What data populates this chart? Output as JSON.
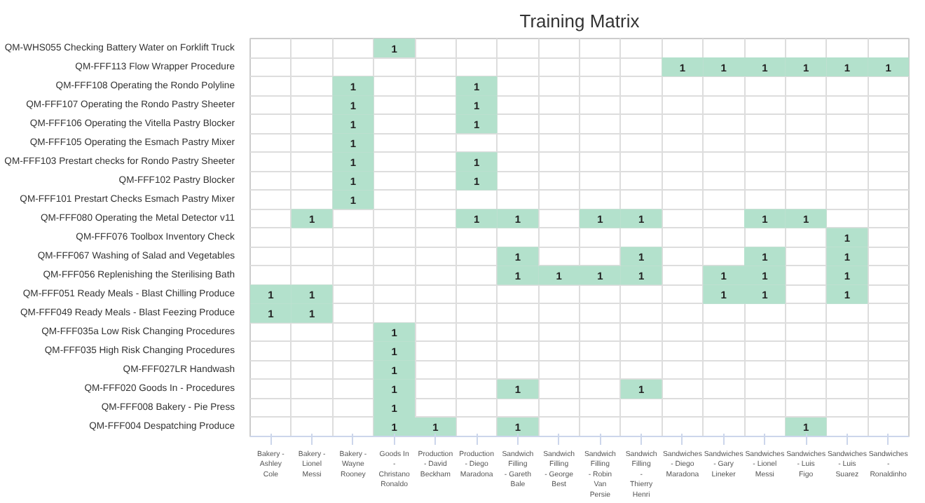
{
  "chart_data": {
    "type": "heatmap",
    "title": "Training Matrix",
    "categories": [
      "Bakery - Ashley Cole",
      "Bakery - Lionel Messi",
      "Bakery - Wayne Rooney",
      "Goods In - Christano Ronaldo",
      "Production - David Beckham",
      "Production - Diego Maradona",
      "Sandwich Filling - Gareth Bale",
      "Sandwich Filling - George Best",
      "Sandwich Filling - Robin Van Persie",
      "Sandwich Filling - Thierry Henri",
      "Sandwiches - Diego Maradona",
      "Sandwiches - Gary Lineker",
      "Sandwiches - Lionel Messi",
      "Sandwiches - Luis Figo",
      "Sandwiches - Luis Suarez",
      "Sandwiches - Ronaldinho"
    ],
    "y_categories": [
      "QM-WHS055 Checking Battery Water on Forklift Truck",
      "QM-FFF113 Flow Wrapper Procedure",
      "QM-FFF108 Operating the Rondo Polyline",
      "QM-FFF107 Operating the Rondo Pastry Sheeter",
      "QM-FFF106 Operating the Vitella Pastry Blocker",
      "QM-FFF105 Operating the Esmach Pastry Mixer",
      "QM-FFF103 Prestart checks for Rondo Pastry Sheeter",
      "QM-FFF102 Pastry Blocker",
      "QM-FFF101 Prestart Checks Esmach Pastry Mixer",
      "QM-FFF080 Operating the Metal Detector v11",
      "QM-FFF076 Toolbox Inventory Check",
      "QM-FFF067 Washing of Salad and Vegetables",
      "QM-FFF056 Replenishing the Sterilising Bath",
      "QM-FFF051 Ready Meals - Blast Chilling Produce",
      "QM-FFF049 Ready Meals - Blast Feezing Produce",
      "QM-FFF035a Low Risk Changing Procedures",
      "QM-FFF035 High Risk Changing Procedures",
      "QM-FFF027LR Handwash",
      "QM-FFF020 Goods In - Procedures",
      "QM-FFF008 Bakery - Pie Press",
      "QM-FFF004 Despatching Produce"
    ],
    "cells": [
      [
        null,
        null,
        null,
        1,
        null,
        null,
        null,
        null,
        null,
        null,
        null,
        null,
        null,
        null,
        null,
        null
      ],
      [
        null,
        null,
        null,
        null,
        null,
        null,
        null,
        null,
        null,
        null,
        1,
        1,
        1,
        1,
        1,
        1
      ],
      [
        null,
        null,
        1,
        null,
        null,
        1,
        null,
        null,
        null,
        null,
        null,
        null,
        null,
        null,
        null,
        null
      ],
      [
        null,
        null,
        1,
        null,
        null,
        1,
        null,
        null,
        null,
        null,
        null,
        null,
        null,
        null,
        null,
        null
      ],
      [
        null,
        null,
        1,
        null,
        null,
        1,
        null,
        null,
        null,
        null,
        null,
        null,
        null,
        null,
        null,
        null
      ],
      [
        null,
        null,
        1,
        null,
        null,
        null,
        null,
        null,
        null,
        null,
        null,
        null,
        null,
        null,
        null,
        null
      ],
      [
        null,
        null,
        1,
        null,
        null,
        1,
        null,
        null,
        null,
        null,
        null,
        null,
        null,
        null,
        null,
        null
      ],
      [
        null,
        null,
        1,
        null,
        null,
        1,
        null,
        null,
        null,
        null,
        null,
        null,
        null,
        null,
        null,
        null
      ],
      [
        null,
        null,
        1,
        null,
        null,
        null,
        null,
        null,
        null,
        null,
        null,
        null,
        null,
        null,
        null,
        null
      ],
      [
        null,
        1,
        null,
        null,
        null,
        1,
        1,
        null,
        1,
        1,
        null,
        null,
        1,
        1,
        null,
        null
      ],
      [
        null,
        null,
        null,
        null,
        null,
        null,
        null,
        null,
        null,
        null,
        null,
        null,
        null,
        null,
        1,
        null
      ],
      [
        null,
        null,
        null,
        null,
        null,
        null,
        1,
        null,
        null,
        1,
        null,
        null,
        1,
        null,
        1,
        null
      ],
      [
        null,
        null,
        null,
        null,
        null,
        null,
        1,
        1,
        1,
        1,
        null,
        1,
        1,
        null,
        1,
        null
      ],
      [
        1,
        1,
        null,
        null,
        null,
        null,
        null,
        null,
        null,
        null,
        null,
        1,
        1,
        null,
        1,
        null
      ],
      [
        1,
        1,
        null,
        null,
        null,
        null,
        null,
        null,
        null,
        null,
        null,
        null,
        null,
        null,
        null,
        null
      ],
      [
        null,
        null,
        null,
        1,
        null,
        null,
        null,
        null,
        null,
        null,
        null,
        null,
        null,
        null,
        null,
        null
      ],
      [
        null,
        null,
        null,
        1,
        null,
        null,
        null,
        null,
        null,
        null,
        null,
        null,
        null,
        null,
        null,
        null
      ],
      [
        null,
        null,
        null,
        1,
        null,
        null,
        null,
        null,
        null,
        null,
        null,
        null,
        null,
        null,
        null,
        null
      ],
      [
        null,
        null,
        null,
        1,
        null,
        null,
        1,
        null,
        null,
        1,
        null,
        null,
        null,
        null,
        null,
        null
      ],
      [
        null,
        null,
        null,
        1,
        null,
        null,
        null,
        null,
        null,
        null,
        null,
        null,
        null,
        null,
        null,
        null
      ],
      [
        null,
        null,
        null,
        1,
        1,
        null,
        1,
        null,
        null,
        null,
        null,
        null,
        null,
        1,
        null,
        null
      ]
    ],
    "color": "#b3e1cc",
    "data_labels": true,
    "grid": true
  }
}
